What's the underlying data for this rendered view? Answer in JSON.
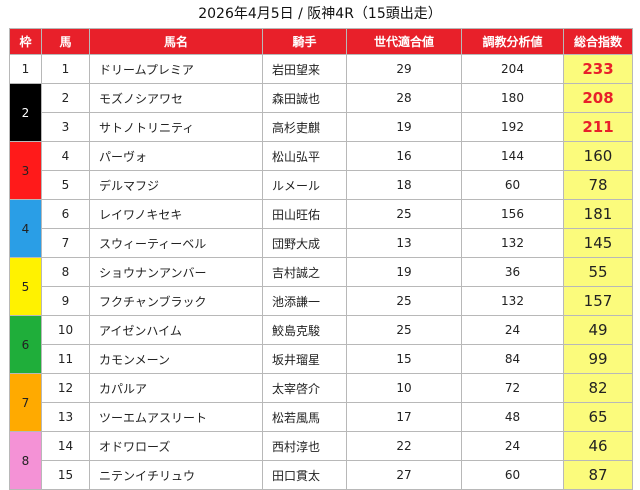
{
  "title": "2026年4月5日 / 阪神4R（15頭出走）",
  "headers": {
    "waku": "枠",
    "umaban": "馬",
    "name": "馬名",
    "jockey": "騎手",
    "generation": "世代適合値",
    "training": "調教分析値",
    "total": "総合指数"
  },
  "colors": {
    "header_bg": "#e8202a",
    "total_bg": "#fbfb7c",
    "top_value": "#e8202a"
  },
  "groups": [
    {
      "waku": "1",
      "bg": "#ffffff",
      "fg": "#222222",
      "horses": [
        {
          "num": "1",
          "name": "ドリームプレミア",
          "jockey": "岩田望来",
          "gen": "29",
          "train": "204",
          "total": "233",
          "top": true
        }
      ]
    },
    {
      "waku": "2",
      "bg": "#000000",
      "fg": "#ffffff",
      "horses": [
        {
          "num": "2",
          "name": "モズノシアワセ",
          "jockey": "森田誠也",
          "gen": "28",
          "train": "180",
          "total": "208",
          "top": true
        },
        {
          "num": "3",
          "name": "サトノトリニティ",
          "jockey": "高杉吏麒",
          "gen": "19",
          "train": "192",
          "total": "211",
          "top": true
        }
      ]
    },
    {
      "waku": "3",
      "bg": "#ff1a1a",
      "fg": "#222222",
      "horses": [
        {
          "num": "4",
          "name": "パーヴォ",
          "jockey": "松山弘平",
          "gen": "16",
          "train": "144",
          "total": "160",
          "top": false
        },
        {
          "num": "5",
          "name": "デルマフジ",
          "jockey": "ルメール",
          "gen": "18",
          "train": "60",
          "total": "78",
          "top": false
        }
      ]
    },
    {
      "waku": "4",
      "bg": "#2a9ee6",
      "fg": "#222222",
      "horses": [
        {
          "num": "6",
          "name": "レイワノキセキ",
          "jockey": "田山旺佑",
          "gen": "25",
          "train": "156",
          "total": "181",
          "top": false
        },
        {
          "num": "7",
          "name": "スウィーティーベル",
          "jockey": "団野大成",
          "gen": "13",
          "train": "132",
          "total": "145",
          "top": false
        }
      ]
    },
    {
      "waku": "5",
      "bg": "#fff200",
      "fg": "#222222",
      "horses": [
        {
          "num": "8",
          "name": "ショウナンアンバー",
          "jockey": "吉村誠之",
          "gen": "19",
          "train": "36",
          "total": "55",
          "top": false
        },
        {
          "num": "9",
          "name": "フクチャンブラック",
          "jockey": "池添謙一",
          "gen": "25",
          "train": "132",
          "total": "157",
          "top": false
        }
      ]
    },
    {
      "waku": "6",
      "bg": "#1fae3a",
      "fg": "#222222",
      "horses": [
        {
          "num": "10",
          "name": "アイゼンハイム",
          "jockey": "鮫島克駿",
          "gen": "25",
          "train": "24",
          "total": "49",
          "top": false
        },
        {
          "num": "11",
          "name": "カモンメーン",
          "jockey": "坂井瑠星",
          "gen": "15",
          "train": "84",
          "total": "99",
          "top": false
        }
      ]
    },
    {
      "waku": "7",
      "bg": "#ffaa00",
      "fg": "#222222",
      "horses": [
        {
          "num": "12",
          "name": "カパルア",
          "jockey": "太宰啓介",
          "gen": "10",
          "train": "72",
          "total": "82",
          "top": false
        },
        {
          "num": "13",
          "name": "ツーエムアスリート",
          "jockey": "松若風馬",
          "gen": "17",
          "train": "48",
          "total": "65",
          "top": false
        }
      ]
    },
    {
      "waku": "8",
      "bg": "#f492d6",
      "fg": "#222222",
      "horses": [
        {
          "num": "14",
          "name": "オドワローズ",
          "jockey": "西村淳也",
          "gen": "22",
          "train": "24",
          "total": "46",
          "top": false
        },
        {
          "num": "15",
          "name": "ニテンイチリュウ",
          "jockey": "田口貫太",
          "gen": "27",
          "train": "60",
          "total": "87",
          "top": false
        }
      ]
    }
  ]
}
